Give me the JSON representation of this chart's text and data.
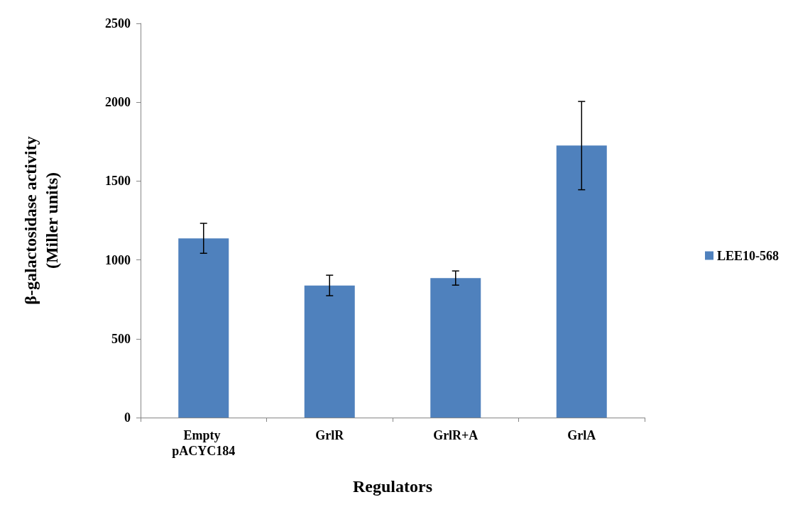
{
  "chart_data": {
    "type": "bar",
    "xlabel": "Regulators",
    "ylabel": "β-galactosidase activity\n(Miller units)",
    "categories": [
      "Empty pACYC184",
      "GrlR",
      "GrlR+A",
      "GrlA"
    ],
    "series": [
      {
        "name": "LEE10-568",
        "color": "#4f81bd",
        "values": [
          1137,
          838,
          885,
          1725
        ],
        "errors": [
          95,
          65,
          45,
          280
        ]
      }
    ],
    "ylim": [
      0,
      2500
    ],
    "yticks": [
      0,
      500,
      1000,
      1500,
      2000,
      2500
    ],
    "grid": false,
    "legend": "right"
  }
}
